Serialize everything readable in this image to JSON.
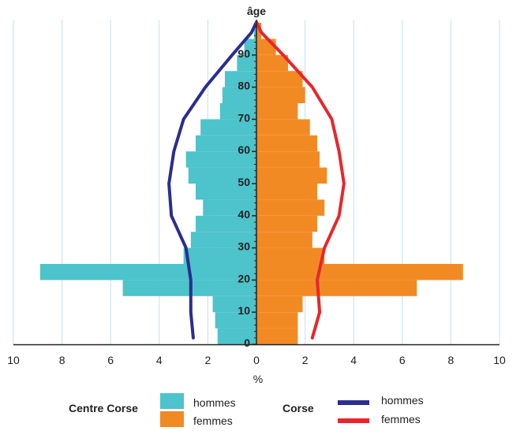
{
  "chart_data": {
    "type": "bar",
    "subtype": "population-pyramid",
    "y_axis_title": "âge",
    "x_axis_title": "%",
    "xlim": [
      -10,
      10
    ],
    "x_ticks": [
      -10,
      -8,
      -6,
      -4,
      -2,
      0,
      2,
      4,
      6,
      8,
      10
    ],
    "x_tick_labels": [
      "10",
      "8",
      "6",
      "4",
      "2",
      "0",
      "2",
      "4",
      "6",
      "8",
      "10"
    ],
    "ylim": [
      0,
      100
    ],
    "age_ticks": [
      0,
      10,
      20,
      30,
      40,
      50,
      60,
      70,
      80,
      90
    ],
    "age_tick_labels": [
      "0",
      "10",
      "20",
      "30",
      "40",
      "50",
      "60",
      "70",
      "80",
      "90"
    ],
    "grid": "vertical",
    "groups": [
      {
        "name": "Centre Corse",
        "type": "bar",
        "series": [
          {
            "name": "hommes",
            "side": "left",
            "color": "#4dc3cb",
            "age_bands": [
              [
                0,
                5
              ],
              [
                5,
                10
              ],
              [
                10,
                15
              ],
              [
                15,
                20
              ],
              [
                20,
                25
              ],
              [
                25,
                30
              ],
              [
                30,
                35
              ],
              [
                35,
                40
              ],
              [
                40,
                45
              ],
              [
                45,
                50
              ],
              [
                50,
                55
              ],
              [
                55,
                60
              ],
              [
                60,
                65
              ],
              [
                65,
                70
              ],
              [
                70,
                75
              ],
              [
                75,
                80
              ],
              [
                80,
                85
              ],
              [
                85,
                90
              ],
              [
                90,
                95
              ],
              [
                95,
                100
              ]
            ],
            "values": [
              1.6,
              1.7,
              1.8,
              5.5,
              8.9,
              3.0,
              2.7,
              2.5,
              2.2,
              2.5,
              2.8,
              2.9,
              2.5,
              2.3,
              1.5,
              1.4,
              1.3,
              0.8,
              0.5,
              0.1
            ]
          },
          {
            "name": "femmes",
            "side": "right",
            "color": "#f28a24",
            "age_bands": [
              [
                0,
                5
              ],
              [
                5,
                10
              ],
              [
                10,
                15
              ],
              [
                15,
                20
              ],
              [
                20,
                25
              ],
              [
                25,
                30
              ],
              [
                30,
                35
              ],
              [
                35,
                40
              ],
              [
                40,
                45
              ],
              [
                45,
                50
              ],
              [
                50,
                55
              ],
              [
                55,
                60
              ],
              [
                60,
                65
              ],
              [
                65,
                70
              ],
              [
                70,
                75
              ],
              [
                75,
                80
              ],
              [
                80,
                85
              ],
              [
                85,
                90
              ],
              [
                90,
                95
              ],
              [
                95,
                100
              ]
            ],
            "values": [
              1.7,
              1.7,
              1.9,
              6.6,
              8.5,
              2.8,
              2.3,
              2.5,
              2.8,
              2.5,
              2.9,
              2.6,
              2.5,
              2.2,
              1.7,
              2.0,
              1.9,
              1.3,
              0.8,
              0.2
            ]
          }
        ]
      },
      {
        "name": "Corse",
        "type": "line",
        "series": [
          {
            "name": "hommes",
            "side": "left",
            "color": "#2b2d8f",
            "ages": [
              2,
              10,
              20,
              30,
              40,
              50,
              60,
              70,
              80,
              90,
              97
            ],
            "values": [
              2.6,
              2.7,
              2.7,
              2.9,
              3.5,
              3.6,
              3.4,
              3.0,
              2.1,
              1.0,
              0.2
            ]
          },
          {
            "name": "femmes",
            "side": "right",
            "color": "#e8262c",
            "ages": [
              2,
              10,
              20,
              30,
              40,
              50,
              60,
              70,
              80,
              90,
              97
            ],
            "values": [
              2.3,
              2.6,
              2.5,
              2.8,
              3.4,
              3.6,
              3.4,
              3.1,
              2.3,
              1.1,
              0.2
            ]
          }
        ]
      }
    ]
  }
}
